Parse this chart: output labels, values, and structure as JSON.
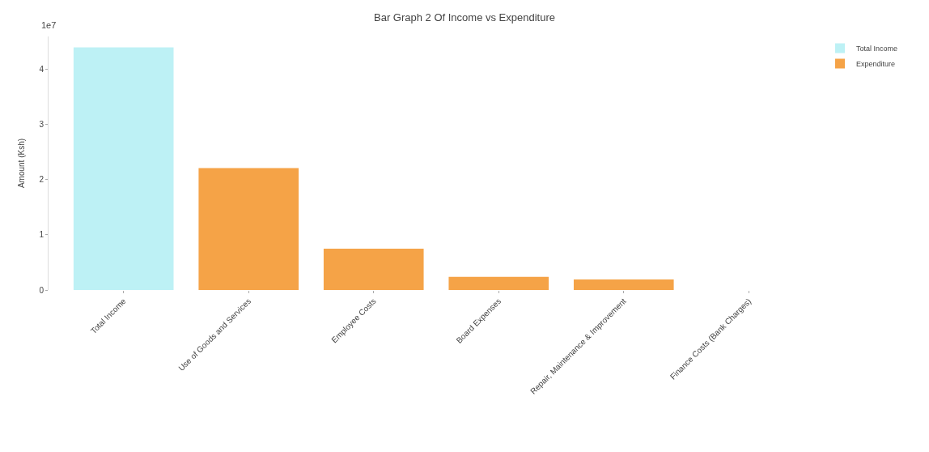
{
  "chart_data": {
    "type": "bar",
    "title": "Bar Graph 2 Of Income vs Expenditure",
    "ylabel": "Amount (Ksh)",
    "categories": [
      "Total Income",
      "Use of Goods and Services",
      "Employee Costs",
      "Board Expenses",
      "Repair, Maintenance & Improvement",
      "Finance Costs (Bank Charges)"
    ],
    "series": [
      {
        "name": "Total Income",
        "color": "#bdf1f5",
        "values": [
          4.4,
          null,
          null,
          null,
          null,
          null
        ]
      },
      {
        "name": "Expenditure",
        "color": "#f5a347",
        "values": [
          null,
          2.21,
          0.75,
          0.24,
          0.19,
          0
        ]
      }
    ],
    "ylim": [
      0,
      4.6
    ],
    "yticks": [
      0,
      1,
      2,
      3,
      4
    ],
    "annotations": [
      "1e7"
    ],
    "grid": false,
    "legend": "top right"
  }
}
